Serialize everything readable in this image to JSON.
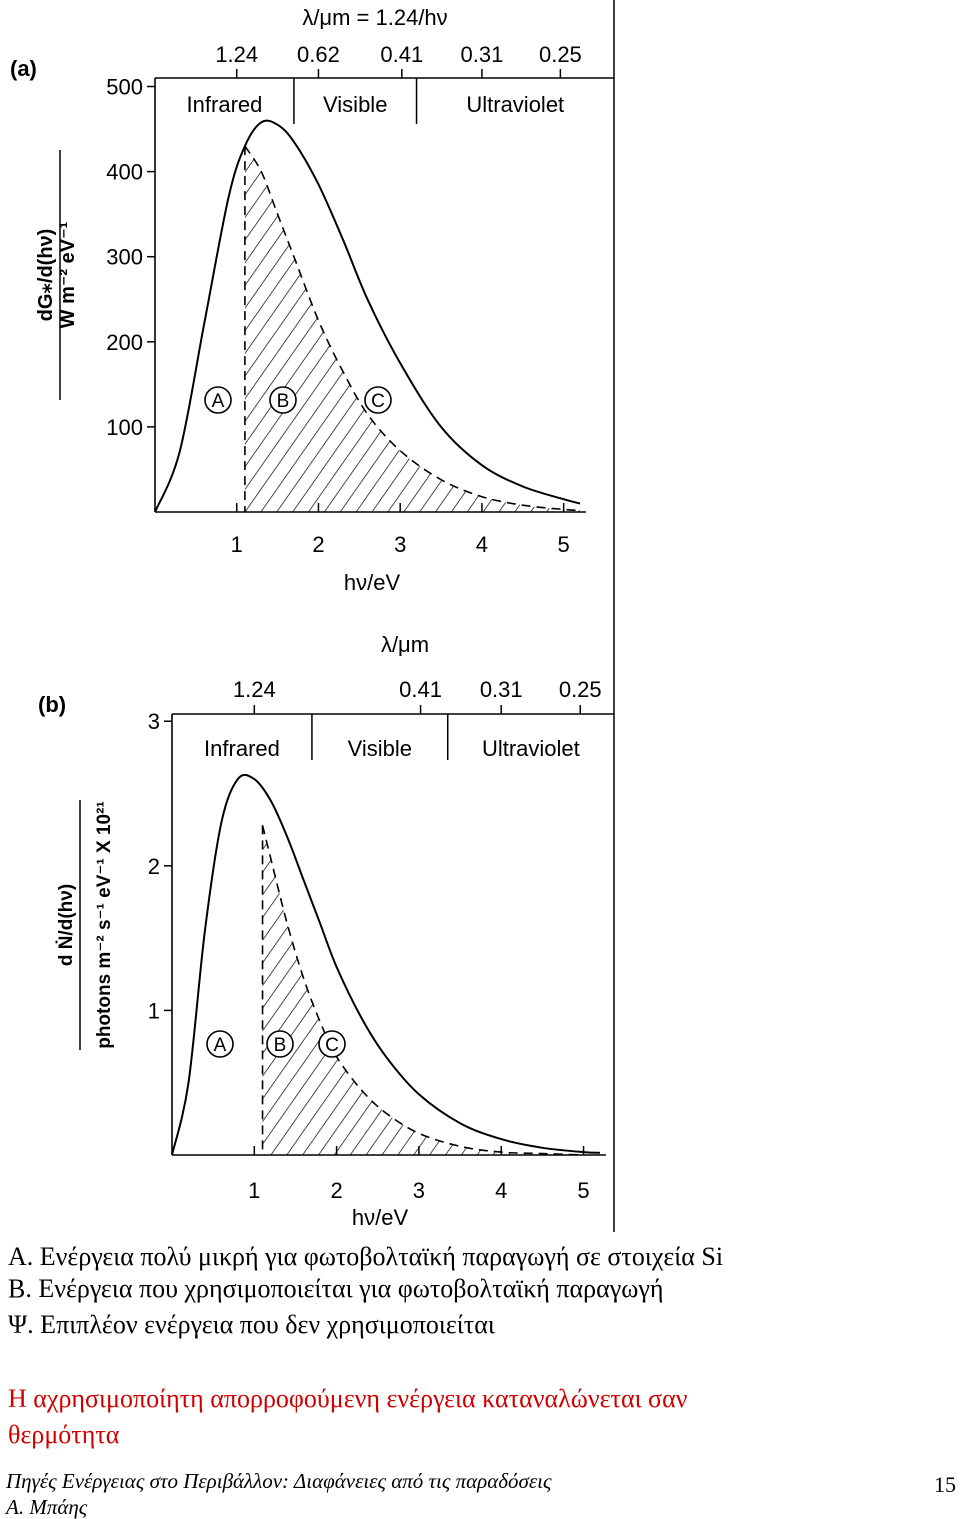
{
  "chart_data": [
    {
      "type": "area",
      "panel_label": "(a)",
      "top_axis_label": "λ/μm = 1.24/hν",
      "top_ticks": [
        "1.24",
        "0.62",
        "0.41",
        "0.31",
        "0.25"
      ],
      "top_tick_ev": [
        1.0,
        2.0,
        3.02,
        4.0,
        4.96
      ],
      "bands": [
        {
          "label": "Infrared",
          "from": 0,
          "to": 1.7
        },
        {
          "label": "Visible",
          "from": 1.7,
          "to": 3.2
        },
        {
          "label": "Ultraviolet",
          "from": 3.2,
          "to": 5.7
        }
      ],
      "ylabel_top": "dG⁎/d(hν)",
      "ylabel_bottom": "W m⁻² eV⁻¹",
      "xlabel": "hν/eV",
      "x_ticks": [
        1,
        2,
        3,
        4,
        5
      ],
      "y_ticks": [
        100,
        200,
        300,
        400,
        500
      ],
      "ylim": [
        0,
        510
      ],
      "xlim": [
        0,
        5.2
      ],
      "bandgap_ev": 1.1,
      "regions": [
        "A",
        "B",
        "C"
      ],
      "series": [
        {
          "role": "total",
          "x": [
            0,
            0.3,
            0.6,
            0.9,
            1.1,
            1.3,
            1.5,
            1.7,
            2.0,
            2.3,
            2.6,
            3.0,
            3.5,
            4.0,
            4.5,
            5.0,
            5.2
          ],
          "y": [
            0,
            70,
            220,
            370,
            430,
            458,
            455,
            435,
            385,
            320,
            250,
            175,
            100,
            55,
            30,
            15,
            10
          ]
        },
        {
          "role": "used",
          "x": [
            1.1,
            1.3,
            1.5,
            1.7,
            2.0,
            2.3,
            2.6,
            3.0,
            3.5,
            4.0,
            4.5,
            5.0,
            5.2
          ],
          "y": [
            430,
            400,
            350,
            300,
            225,
            165,
            115,
            72,
            38,
            18,
            8,
            3,
            2
          ]
        }
      ]
    },
    {
      "type": "area",
      "panel_label": "(b)",
      "top_axis_label": "λ/μm",
      "top_ticks": [
        "1.24",
        "0.41",
        "0.31",
        "0.25"
      ],
      "top_tick_ev": [
        1.0,
        3.02,
        4.0,
        4.96
      ],
      "bands": [
        {
          "label": "Infrared",
          "from": 0,
          "to": 1.7
        },
        {
          "label": "Visible",
          "from": 1.7,
          "to": 3.35
        },
        {
          "label": "Ultraviolet",
          "from": 3.35,
          "to": 5.5
        }
      ],
      "ylabel_top": "d Ṅ/d(hν)",
      "ylabel_bottom": "photons m⁻² s⁻¹ eV⁻¹ X 10²¹",
      "xlabel": "hν/eV",
      "x_ticks": [
        1,
        2,
        3,
        4,
        5
      ],
      "y_ticks": [
        1,
        2,
        3
      ],
      "ylim": [
        0,
        3.05
      ],
      "xlim": [
        0,
        5.2
      ],
      "bandgap_ev": 1.1,
      "regions": [
        "A",
        "B",
        "C"
      ],
      "series": [
        {
          "role": "total",
          "x": [
            0,
            0.2,
            0.4,
            0.6,
            0.8,
            1.0,
            1.2,
            1.4,
            1.6,
            1.8,
            2.0,
            2.3,
            2.6,
            3.0,
            3.5,
            4.0,
            4.5,
            5.0,
            5.2
          ],
          "y": [
            0,
            0.5,
            1.55,
            2.3,
            2.6,
            2.6,
            2.45,
            2.2,
            1.9,
            1.6,
            1.3,
            0.95,
            0.68,
            0.42,
            0.22,
            0.11,
            0.05,
            0.02,
            0.015
          ]
        },
        {
          "role": "used",
          "x": [
            1.1,
            1.2,
            1.4,
            1.6,
            1.8,
            2.0,
            2.3,
            2.6,
            3.0,
            3.5,
            4.0,
            4.5,
            5.0
          ],
          "y": [
            2.28,
            2.05,
            1.6,
            1.22,
            0.92,
            0.68,
            0.45,
            0.29,
            0.15,
            0.06,
            0.02,
            0.01,
            0.0
          ]
        }
      ]
    }
  ],
  "caption": {
    "line_a": "Α. Ενέργεια πολύ μικρή για φωτοβολταϊκή παραγωγή σε στοιχεία Si",
    "line_b": "Β. Ενέργεια που χρησιμοποιείται για φωτοβολταϊκή παραγωγή",
    "line_c": "Ψ. Επιπλέον ενέργεια που δεν χρησιμοποιείται",
    "note_line1": "Η αχρησιμοποίητη απορροφούμενη ενέργεια καταναλώνεται σαν",
    "note_line2": "θερμότητα"
  },
  "footer": {
    "title": "Πηγές Ενέργειας στο Περιβάλλον: Διαφάνειες από τις παραδόσεις",
    "author": "Α. Μπάης",
    "page_number": "15"
  },
  "colors": {
    "note": "#d00000",
    "ink": "#000000"
  }
}
